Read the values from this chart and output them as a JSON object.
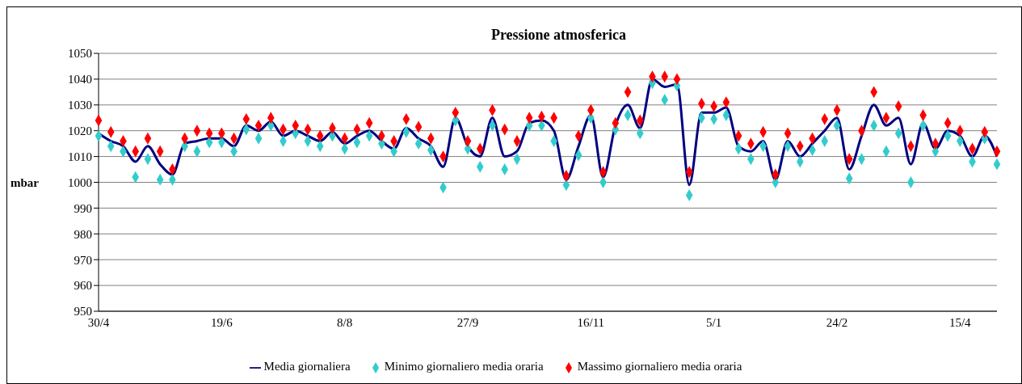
{
  "chart_data": {
    "type": "line",
    "title": "Pressione atmosferica",
    "ylabel": "mbar",
    "categories": [
      "30/4",
      null,
      null,
      null,
      null,
      null,
      null,
      null,
      null,
      null,
      "19/6",
      null,
      null,
      null,
      null,
      null,
      null,
      null,
      null,
      null,
      "8/8",
      null,
      null,
      null,
      null,
      null,
      null,
      null,
      null,
      null,
      "27/9",
      null,
      null,
      null,
      null,
      null,
      null,
      null,
      null,
      null,
      "16/11",
      null,
      null,
      null,
      null,
      null,
      null,
      null,
      null,
      null,
      "5/1",
      null,
      null,
      null,
      null,
      null,
      null,
      null,
      null,
      null,
      "24/2",
      null,
      null,
      null,
      null,
      null,
      null,
      null,
      null,
      null,
      "15/4",
      null,
      null,
      null
    ],
    "series": [
      {
        "name": "Media giornaliera",
        "marker": "none",
        "color": "#000080",
        "values": [
          1019,
          1016,
          1014,
          1008,
          1014,
          1007,
          1003,
          1015,
          1016,
          1017,
          1017,
          1014,
          1022,
          1020,
          1023.5,
          1018,
          1020,
          1018,
          1016,
          1019.5,
          1015,
          1018,
          1020,
          1016,
          1013,
          1021,
          1017,
          1014,
          1006,
          1025,
          1014,
          1010,
          1025,
          1010,
          1012,
          1023,
          1024,
          1020,
          1001,
          1014,
          1026,
          1002,
          1022,
          1030,
          1021,
          1040,
          1037,
          1038,
          999,
          1027,
          1027,
          1029,
          1014,
          1012,
          1016,
          1001,
          1016,
          1010,
          1015,
          1020,
          1025,
          1005,
          1018,
          1030,
          1022,
          1025,
          1007,
          1023,
          1013,
          1020,
          1018,
          1010,
          1018,
          1010
        ]
      },
      {
        "name": "Minimo giornaliero media oraria",
        "type": "scatter",
        "marker": "diamond",
        "color": "#33cccc",
        "values": [
          1018,
          1014,
          1012,
          1002,
          1009,
          1001,
          1001,
          1014,
          1012,
          1015.5,
          1015.5,
          1012,
          1020.5,
          1017,
          1022,
          1016,
          1019,
          1016,
          1014,
          1018,
          1013,
          1015.5,
          1018,
          1015,
          1012,
          1019.5,
          1015,
          1012.5,
          998,
          1024,
          1013,
          1006,
          1022,
          1005,
          1009,
          1022,
          1022,
          1016,
          999,
          1010.5,
          1025,
          1000,
          1020.5,
          1026,
          1019,
          1038.5,
          1032,
          1037.5,
          995,
          1025,
          1024.5,
          1026,
          1013,
          1009,
          1014,
          1000,
          1014,
          1008,
          1012.5,
          1016,
          1022,
          1001.5,
          1009,
          1022,
          1012,
          1019,
          1000,
          1022,
          1012,
          1018,
          1016,
          1008,
          1017,
          1007
        ]
      },
      {
        "name": "Massimo giornaliero media oraria",
        "type": "scatter",
        "marker": "diamond",
        "color": "#ff0000",
        "values": [
          1024,
          1019.5,
          1016,
          1012,
          1017,
          1012,
          1005,
          1017,
          1020,
          1019,
          1019,
          1017,
          1024.5,
          1022,
          1025,
          1020.5,
          1022,
          1020.5,
          1018,
          1021,
          1017,
          1020.5,
          1023,
          1018,
          1016,
          1024.5,
          1021.5,
          1017,
          1010,
          1027,
          1016,
          1013,
          1028,
          1020.5,
          1016,
          1025,
          1025.5,
          1025,
          1002.5,
          1018,
          1028,
          1004,
          1023,
          1035,
          1024,
          1041,
          1041,
          1040,
          1004,
          1030.5,
          1029.5,
          1031,
          1018,
          1015,
          1019.5,
          1003,
          1019,
          1014,
          1017,
          1024.5,
          1028,
          1009,
          1020,
          1035,
          1025,
          1029.5,
          1014,
          1026,
          1015,
          1023,
          1020,
          1013,
          1019.5,
          1012
        ]
      }
    ],
    "ylim": [
      950,
      1050
    ],
    "yticks": [
      950,
      960,
      970,
      980,
      990,
      1000,
      1010,
      1020,
      1030,
      1040,
      1050
    ],
    "grid": "y",
    "legend": "bottom"
  }
}
